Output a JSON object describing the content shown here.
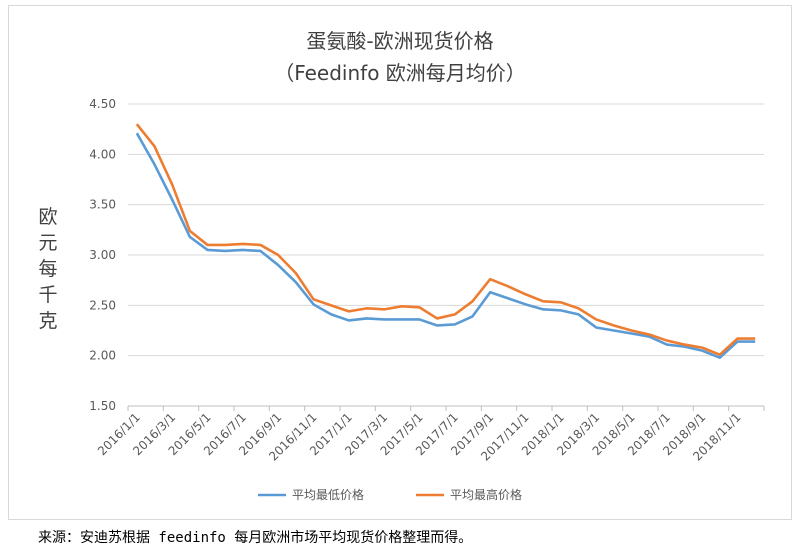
{
  "chart_data": {
    "type": "line",
    "title": "蛋氨酸-欧洲现货价格",
    "subtitle": "（Feedinfo 欧洲每月均价）",
    "ylabel": "欧元每千克",
    "xlabel": "",
    "ylim": [
      1.5,
      4.5
    ],
    "yticks": [
      "1.50",
      "2.00",
      "2.50",
      "3.00",
      "3.50",
      "4.00",
      "4.50"
    ],
    "xtick_labels": [
      "2016/1/1",
      "2016/3/1",
      "2016/5/1",
      "2016/7/1",
      "2016/9/1",
      "2016/11/1",
      "2017/1/1",
      "2017/3/1",
      "2017/5/1",
      "2017/7/1",
      "2017/9/1",
      "2017/11/1",
      "2018/1/1",
      "2018/3/1",
      "2018/5/1",
      "2018/7/1",
      "2018/9/1",
      "2018/11/1"
    ],
    "grid": true,
    "legend": "bottom",
    "series": [
      {
        "name": "平均最低价格",
        "color": "#5B9BD5",
        "values": [
          4.21,
          3.9,
          3.55,
          3.18,
          3.05,
          3.04,
          3.05,
          3.04,
          2.9,
          2.73,
          2.51,
          2.41,
          2.35,
          2.37,
          2.36,
          2.36,
          2.36,
          2.3,
          2.31,
          2.39,
          2.63,
          2.57,
          2.51,
          2.46,
          2.45,
          2.41,
          2.28,
          2.25,
          2.22,
          2.19,
          2.11,
          2.09,
          2.05,
          1.98,
          2.14,
          2.14
        ]
      },
      {
        "name": "平均最高价格",
        "color": "#ED7D31",
        "values": [
          4.3,
          4.08,
          3.7,
          3.24,
          3.1,
          3.1,
          3.11,
          3.1,
          3.0,
          2.82,
          2.56,
          2.5,
          2.44,
          2.47,
          2.46,
          2.49,
          2.48,
          2.37,
          2.41,
          2.54,
          2.76,
          2.69,
          2.61,
          2.54,
          2.53,
          2.47,
          2.36,
          2.3,
          2.25,
          2.21,
          2.15,
          2.11,
          2.08,
          2.01,
          2.17,
          2.17
        ]
      }
    ]
  },
  "footer": "来源：安迪苏根据 feedinfo 每月欧洲市场平均现货价格整理而得。"
}
